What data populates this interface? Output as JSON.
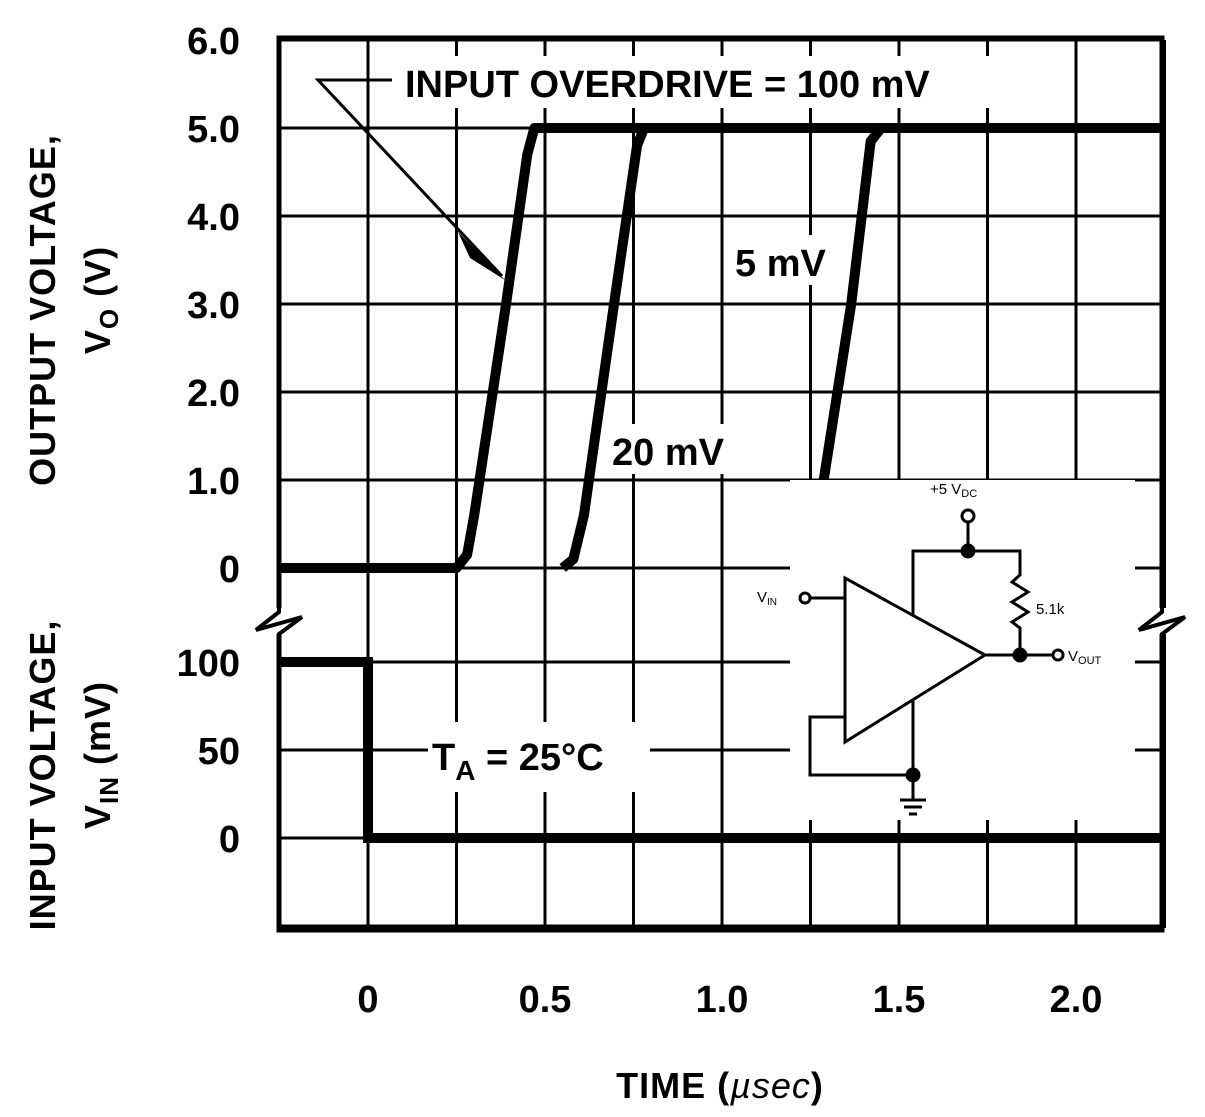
{
  "chart_data": {
    "type": "line",
    "xlabel": "TIME (µsec)",
    "xlabel_prefix": "TIME (",
    "xlabel_unit": "µsec",
    "xlabel_suffix": ")",
    "xlim": [
      -0.25,
      2.25
    ],
    "x_ticks": [
      "0",
      "0.5",
      "1.0",
      "1.5",
      "2.0"
    ],
    "x_tick_values": [
      0,
      0.5,
      1.0,
      1.5,
      2.0
    ],
    "grid": true,
    "upper_panel": {
      "ylabel_line1": "OUTPUT VOLTAGE,",
      "ylabel_line2_main": "V",
      "ylabel_line2_sub": "O",
      "ylabel_line2_rest": " (V)",
      "ylim": [
        0,
        6
      ],
      "y_ticks": [
        "0",
        "1.0",
        "2.0",
        "3.0",
        "4.0",
        "5.0",
        "6.0"
      ],
      "y_tick_values": [
        0,
        1,
        2,
        3,
        4,
        5,
        6
      ],
      "series": [
        {
          "name": "100 mV",
          "points": [
            [
              -0.25,
              0
            ],
            [
              0.25,
              0
            ],
            [
              0.28,
              0.15
            ],
            [
              0.3,
              0.6
            ],
            [
              0.39,
              3.0
            ],
            [
              0.45,
              4.7
            ],
            [
              0.47,
              5.0
            ],
            [
              2.25,
              5.0
            ]
          ]
        },
        {
          "name": "20 mV",
          "points": [
            [
              0.55,
              0
            ],
            [
              0.58,
              0.1
            ],
            [
              0.61,
              0.6
            ],
            [
              0.695,
              3.0
            ],
            [
              0.76,
              4.8
            ],
            [
              0.78,
              5.0
            ]
          ]
        },
        {
          "name": "5 mV",
          "points": [
            [
              1.24,
              0
            ],
            [
              1.26,
              0.3
            ],
            [
              1.365,
              3.0
            ],
            [
              1.42,
              4.85
            ],
            [
              1.45,
              5.0
            ]
          ]
        }
      ]
    },
    "lower_panel": {
      "ylabel_line1": "INPUT VOLTAGE,",
      "ylabel_line2_main": "V",
      "ylabel_line2_sub": "IN",
      "ylabel_line2_rest": " (mV)",
      "ylim": [
        -50,
        100
      ],
      "y_ticks": [
        "0",
        "50",
        "100"
      ],
      "y_tick_values": [
        0,
        50,
        100
      ],
      "series": [
        {
          "name": "input",
          "points": [
            [
              -0.25,
              100
            ],
            [
              0,
              100
            ],
            [
              0,
              0
            ],
            [
              2.25,
              0
            ]
          ]
        }
      ]
    },
    "annotations": {
      "overdrive": "INPUT OVERDRIVE = 100 mV",
      "label_5mv": "5 mV",
      "label_20mv": "20 mV",
      "temp_main": "T",
      "temp_sub": "A",
      "temp_rest": " = 25°C"
    },
    "circuit": {
      "supply_main": "+5 V",
      "supply_sub": "DC",
      "resistor": "5.1k",
      "vin_main": "V",
      "vin_sub": "IN",
      "vout_main": "V",
      "vout_sub": "OUT"
    }
  }
}
